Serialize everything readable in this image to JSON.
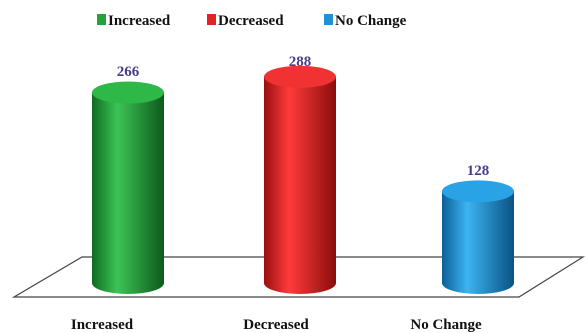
{
  "chart_data": {
    "type": "bar",
    "categories": [
      "Increased",
      "Decreased",
      "No Change"
    ],
    "values": [
      266,
      288,
      128
    ],
    "legend": [
      "Increased",
      "Decreased",
      "No Change"
    ],
    "legend_position": "top",
    "colors": [
      "#22a23a",
      "#e02424",
      "#1e92d6"
    ],
    "data_labels": [
      "266",
      "288",
      "128"
    ],
    "ylim": [
      0,
      320
    ],
    "grid": false,
    "title": "",
    "xlabel": "",
    "ylabel": ""
  }
}
